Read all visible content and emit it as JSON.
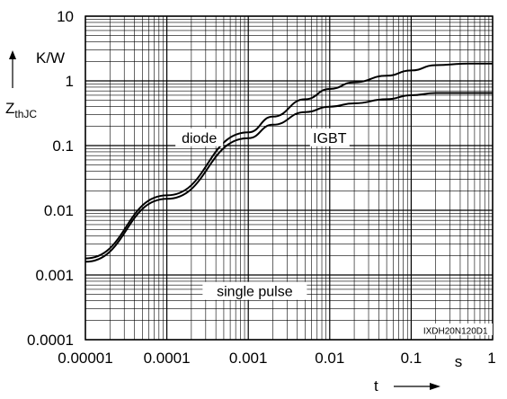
{
  "chart_data": {
    "type": "line",
    "title": "",
    "xlabel": "t",
    "xunit": "s",
    "ylabel_main": "Z",
    "ylabel_sub": "thJC",
    "yunit": "K/W",
    "xscale": "log",
    "yscale": "log",
    "xlim": [
      1e-05,
      1
    ],
    "ylim": [
      0.0001,
      10
    ],
    "grid": true,
    "x_ticks": [
      {
        "value": 1e-05,
        "label": "0.00001"
      },
      {
        "value": 0.0001,
        "label": "0.0001"
      },
      {
        "value": 0.001,
        "label": "0.001"
      },
      {
        "value": 0.01,
        "label": "0.01"
      },
      {
        "value": 0.1,
        "label": "0.1"
      },
      {
        "value": 1,
        "label": "1"
      }
    ],
    "y_ticks": [
      {
        "value": 0.0001,
        "label": "0.0001"
      },
      {
        "value": 0.001,
        "label": "0.001"
      },
      {
        "value": 0.01,
        "label": "0.01"
      },
      {
        "value": 0.1,
        "label": "0.1"
      },
      {
        "value": 1,
        "label": "1"
      },
      {
        "value": 10,
        "label": "10"
      }
    ],
    "series": [
      {
        "name": "diode",
        "x": [
          1e-05,
          0.0001,
          0.001,
          0.002,
          0.005,
          0.01,
          0.02,
          0.05,
          0.1,
          0.2,
          0.5,
          1
        ],
        "y": [
          0.0018,
          0.017,
          0.16,
          0.28,
          0.52,
          0.75,
          0.95,
          1.2,
          1.45,
          1.75,
          1.85,
          1.85
        ]
      },
      {
        "name": "IGBT",
        "x": [
          1e-05,
          0.0001,
          0.001,
          0.002,
          0.005,
          0.01,
          0.02,
          0.05,
          0.1,
          0.2,
          0.5,
          1
        ],
        "y": [
          0.0016,
          0.015,
          0.13,
          0.21,
          0.33,
          0.4,
          0.45,
          0.52,
          0.6,
          0.65,
          0.65,
          0.65
        ]
      }
    ],
    "annotations": [
      {
        "text": "diode",
        "x": 0.00025,
        "y": 0.13
      },
      {
        "text": "IGBT",
        "x": 0.01,
        "y": 0.13
      },
      {
        "text": "single pulse",
        "x": 0.0012,
        "y": 0.00055
      },
      {
        "text": "IXDH20N120D1",
        "x": 0.35,
        "y": 0.00014
      }
    ]
  }
}
